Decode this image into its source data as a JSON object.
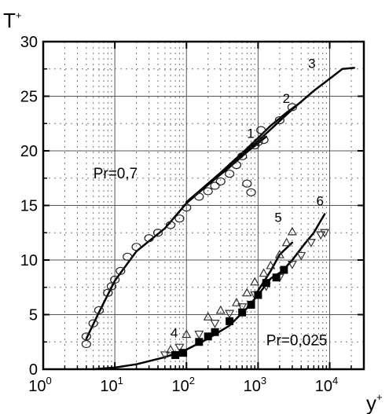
{
  "chart_data": {
    "type": "scatter",
    "title": "",
    "xlabel": "y",
    "xlabel_sup": "+",
    "ylabel": "T",
    "ylabel_sup": "+",
    "x_scale": "log",
    "xlim": [
      1,
      30000
    ],
    "ylim": [
      0,
      30
    ],
    "x_ticks": [
      {
        "value": 1,
        "base": "10",
        "exp": "0"
      },
      {
        "value": 10,
        "base": "10",
        "exp": "1"
      },
      {
        "value": 100,
        "base": "10",
        "exp": "2"
      },
      {
        "value": 1000,
        "base": "10",
        "exp": "3"
      },
      {
        "value": 10000,
        "base": "10",
        "exp": "4"
      }
    ],
    "y_ticks": [
      0,
      5,
      10,
      15,
      20,
      25,
      30
    ],
    "grid": true,
    "annotations": [
      {
        "id": "pr-high",
        "text": "Pr=0,7",
        "x": 5,
        "y": 17.5
      },
      {
        "id": "pr-low",
        "text": "Pr=0,025",
        "x": 1300,
        "y": 2.2
      }
    ],
    "series": [
      {
        "name": "1",
        "style": "line",
        "label_at": [
          700,
          21.2
        ],
        "x": [
          100,
          200,
          400,
          700,
          1000,
          1300
        ],
        "y": [
          15.3,
          16.9,
          18.5,
          19.9,
          20.7,
          21.3
        ]
      },
      {
        "name": "2",
        "style": "line",
        "label_at": [
          2200,
          24.4
        ],
        "x": [
          100,
          300,
          700,
          1500,
          2500,
          3500
        ],
        "y": [
          15.3,
          18.0,
          20.2,
          22.3,
          23.5,
          24.2
        ]
      },
      {
        "name": "3",
        "style": "line",
        "label_at": [
          5000,
          27.6
        ],
        "x": [
          4,
          6,
          10,
          20,
          50,
          100,
          300,
          1000,
          3000,
          6000,
          10000,
          15000,
          22000
        ],
        "y": [
          2.8,
          5.2,
          8.1,
          10.8,
          12.9,
          15.2,
          17.9,
          20.9,
          23.8,
          25.5,
          26.6,
          27.5,
          27.6
        ]
      },
      {
        "name": "4",
        "style": "line",
        "label_at": [
          60,
          2.9
        ],
        "x": [
          5,
          10,
          20,
          50,
          100,
          200,
          400,
          700,
          1000,
          1500,
          2200
        ],
        "y": [
          0.0,
          0.15,
          0.45,
          1.1,
          1.8,
          2.8,
          4.0,
          5.6,
          6.8,
          8.3,
          9.0
        ]
      },
      {
        "name": "5",
        "style": "line",
        "label_at": [
          1700,
          13.5
        ],
        "x": [
          1000,
          1500,
          2000,
          3000
        ],
        "y": [
          7.2,
          9.0,
          10.5,
          11.6
        ]
      },
      {
        "name": "6",
        "style": "line",
        "label_at": [
          6500,
          15.0
        ],
        "x": [
          2000,
          3000,
          4500,
          6000,
          7500,
          8500
        ],
        "y": [
          8.7,
          10.0,
          11.5,
          12.5,
          13.6,
          14.2
        ]
      },
      {
        "style": "circles",
        "x": [
          4,
          4,
          5,
          6,
          8,
          9,
          10,
          12,
          15,
          20,
          30,
          40,
          60,
          80,
          100,
          150,
          200,
          250,
          300,
          400,
          500,
          600,
          700,
          800,
          900,
          1000,
          1100,
          1200,
          2000,
          3000
        ],
        "y": [
          2.3,
          3.0,
          4.2,
          5.4,
          7.0,
          7.6,
          8.2,
          9.0,
          10.3,
          11.2,
          12.0,
          12.5,
          13.2,
          13.8,
          14.8,
          15.8,
          16.3,
          16.8,
          17.2,
          17.9,
          18.7,
          19.5,
          17.0,
          16.2,
          20.5,
          20.8,
          21.9,
          21.0,
          22.8,
          24.0
        ]
      },
      {
        "style": "triangles-up",
        "x": [
          60,
          100,
          200,
          300,
          500,
          700,
          900,
          1200,
          1500,
          2000,
          2500,
          3000
        ],
        "y": [
          1.8,
          3.2,
          4.8,
          5.4,
          6.1,
          7.0,
          8.0,
          8.8,
          9.5,
          10.5,
          11.6,
          12.6
        ]
      },
      {
        "style": "triangles-down",
        "x": [
          50,
          80,
          150,
          250,
          400,
          600,
          900,
          1300,
          2000,
          3000,
          4000,
          5500,
          7500,
          8500
        ],
        "y": [
          1.3,
          2.0,
          3.2,
          4.2,
          5.1,
          5.7,
          6.8,
          7.6,
          8.4,
          9.6,
          10.4,
          11.6,
          12.3,
          12.5
        ]
      },
      {
        "style": "squares",
        "x": [
          70,
          90,
          150,
          200,
          250,
          400,
          600,
          800,
          1000,
          1300,
          1800,
          2300
        ],
        "y": [
          1.3,
          1.5,
          2.5,
          3.0,
          3.4,
          4.4,
          5.2,
          5.9,
          6.8,
          7.9,
          8.4,
          9.1
        ]
      }
    ]
  }
}
